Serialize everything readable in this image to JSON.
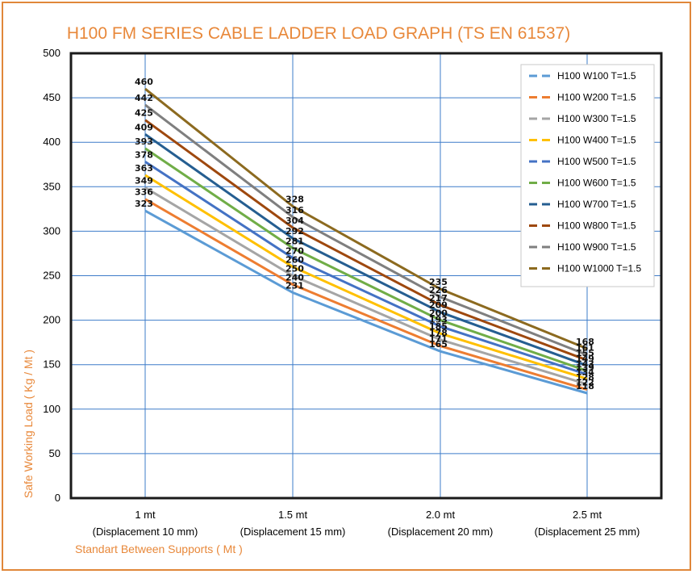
{
  "chart_data": {
    "type": "line",
    "title": "H100 FM SERIES CABLE LADDER LOAD GRAPH (TS EN 61537)",
    "xlabel": "Standart Between Supports ( Mt )",
    "ylabel": "Safe Working Load ( Kg / Mt )",
    "categories": [
      [
        "1 mt",
        "(Displacement 10 mm)"
      ],
      [
        "1.5 mt",
        "(Displacement 15 mm)"
      ],
      [
        "2.0 mt",
        "(Displacement 20 mm)"
      ],
      [
        "2.5 mt",
        "(Displacement 25 mm)"
      ]
    ],
    "ylim": [
      0,
      500
    ],
    "yticks": [
      0,
      50,
      100,
      150,
      200,
      250,
      300,
      350,
      400,
      450,
      500
    ],
    "grid": true,
    "legend_position": "top-right",
    "series": [
      {
        "name": "H100 W100 T=1.5",
        "color": "#5b9bd5",
        "values": [
          323,
          231,
          165,
          118
        ]
      },
      {
        "name": "H100 W200 T=1.5",
        "color": "#ed7d31",
        "values": [
          336,
          240,
          171,
          122
        ]
      },
      {
        "name": "H100 W300 T=1.5",
        "color": "#a5a5a5",
        "values": [
          349,
          250,
          178,
          128
        ]
      },
      {
        "name": "H100 W400 T=1.5",
        "color": "#ffc000",
        "values": [
          363,
          260,
          185,
          134
        ]
      },
      {
        "name": "H100 W500 T=1.5",
        "color": "#4472c4",
        "values": [
          378,
          270,
          193,
          139
        ]
      },
      {
        "name": "H100 W600 T=1.5",
        "color": "#70ad47",
        "values": [
          393,
          281,
          200,
          143
        ]
      },
      {
        "name": "H100 W700 T=1.5",
        "color": "#255e91",
        "values": [
          409,
          292,
          209,
          149
        ]
      },
      {
        "name": "H100 W800 T=1.5",
        "color": "#9e480e",
        "values": [
          425,
          304,
          217,
          155
        ]
      },
      {
        "name": "H100 W900 T=1.5",
        "color": "#7f7f7f",
        "values": [
          442,
          316,
          226,
          161
        ]
      },
      {
        "name": "H100 W1000 T=1.5",
        "color": "#8c6a1f",
        "values": [
          460,
          328,
          235,
          168
        ]
      }
    ]
  }
}
